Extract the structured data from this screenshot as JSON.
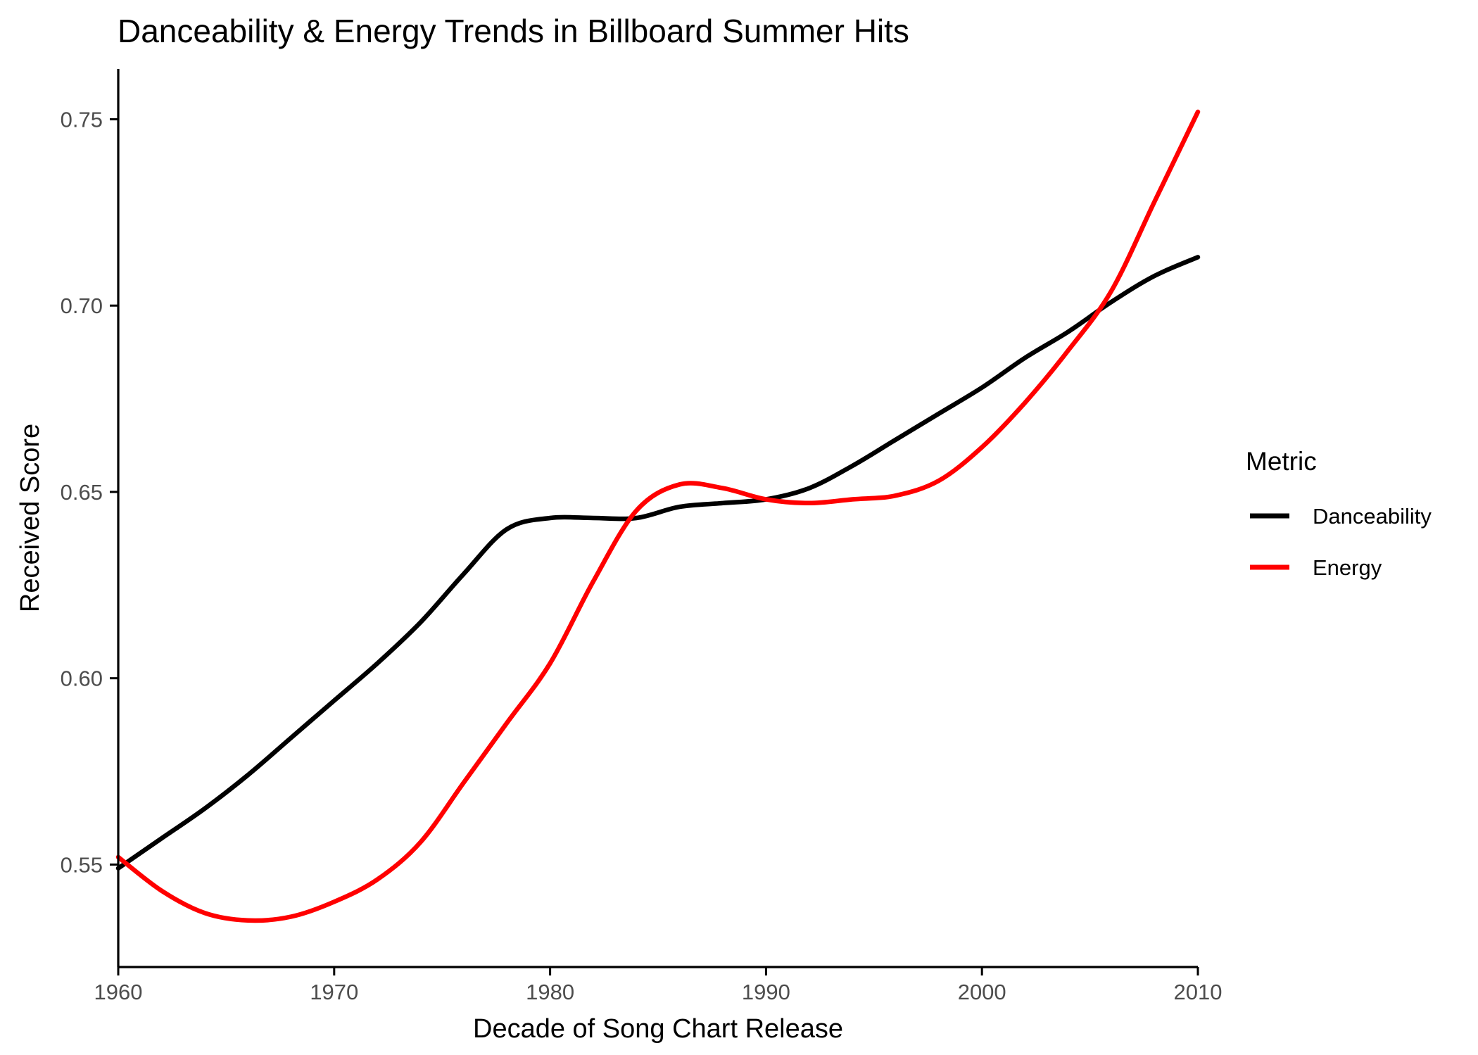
{
  "chart_data": {
    "type": "line",
    "title": "Danceability & Energy Trends in Billboard Summer Hits",
    "xlabel": "Decade of Song Chart Release",
    "ylabel": "Received Score",
    "xlim": [
      1960,
      2010
    ],
    "ylim": [
      0.5225,
      0.7635
    ],
    "x_ticks": [
      1960,
      1970,
      1980,
      1990,
      2000,
      2010
    ],
    "y_ticks": [
      0.55,
      0.6,
      0.65,
      0.7,
      0.75
    ],
    "x_tick_labels": [
      "1960",
      "1970",
      "1980",
      "1990",
      "2000",
      "2010"
    ],
    "y_tick_labels": [
      "0.55",
      "0.60",
      "0.65",
      "0.70",
      "0.75"
    ],
    "grid": false,
    "legend_title": "Metric",
    "legend_position": "right",
    "series": [
      {
        "name": "Danceability",
        "color": "#000000",
        "x": [
          1960,
          1962,
          1964,
          1966,
          1968,
          1970,
          1972,
          1974,
          1976,
          1978,
          1980,
          1982,
          1984,
          1986,
          1988,
          1990,
          1992,
          1994,
          1996,
          1998,
          2000,
          2002,
          2004,
          2006,
          2008,
          2010
        ],
        "y": [
          0.549,
          0.557,
          0.565,
          0.574,
          0.584,
          0.594,
          0.604,
          0.615,
          0.628,
          0.64,
          0.643,
          0.643,
          0.643,
          0.646,
          0.647,
          0.648,
          0.651,
          0.657,
          0.664,
          0.671,
          0.678,
          0.686,
          0.693,
          0.701,
          0.708,
          0.713
        ]
      },
      {
        "name": "Energy",
        "color": "#ff0000",
        "x": [
          1960,
          1962,
          1964,
          1966,
          1968,
          1970,
          1972,
          1974,
          1976,
          1978,
          1980,
          1982,
          1984,
          1986,
          1988,
          1990,
          1992,
          1994,
          1996,
          1998,
          2000,
          2002,
          2004,
          2006,
          2008,
          2010
        ],
        "y": [
          0.552,
          0.543,
          0.537,
          0.535,
          0.536,
          0.54,
          0.546,
          0.556,
          0.572,
          0.588,
          0.604,
          0.626,
          0.645,
          0.652,
          0.651,
          0.648,
          0.647,
          0.648,
          0.649,
          0.653,
          0.662,
          0.674,
          0.688,
          0.704,
          0.728,
          0.752
        ]
      }
    ]
  }
}
